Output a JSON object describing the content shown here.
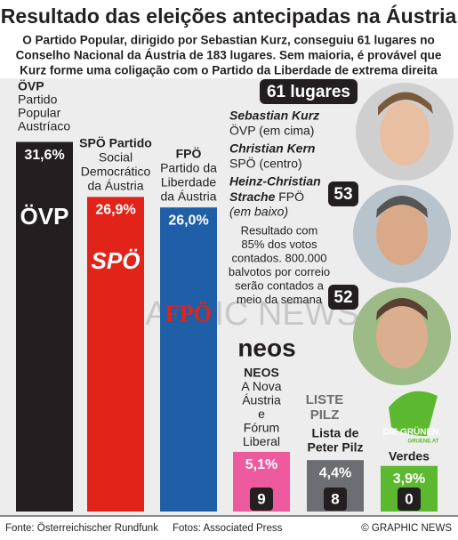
{
  "chart_data": {
    "type": "bar",
    "title": "Resultado das eleições antecipadas na Áustria",
    "subtitle": [
      "O Partido Popular, dirigido por Sebastian Kurz, conseguiu 61 lugares no",
      "Conselho Nacional da Áustria de 183 lugares. Sem maioria, é provável que",
      "Kurz forme uma coligação com o Partido da Liberdade de extrema direita"
    ],
    "categories": [
      "ÖVP",
      "SPÖ",
      "FPÖ",
      "NEOS",
      "Lista de Peter Pilz",
      "Verdes"
    ],
    "labels": [
      [
        "ÖVP",
        "Partido",
        "Popular",
        "Austríaco"
      ],
      [
        "SPÖ Partido",
        "Social",
        "Democrático",
        "da Áustria"
      ],
      [
        "FPÖ",
        "Partido da",
        "Liberdade",
        "da Áustria"
      ],
      [
        "NEOS",
        "A Nova",
        "Áustria",
        "e",
        "Fórum",
        "Liberal"
      ],
      [
        "Lista de",
        "Peter Pilz"
      ],
      [
        "Verdes"
      ]
    ],
    "logos": [
      [
        "ÖVP"
      ],
      [
        "SPÖ"
      ],
      [
        "FPÖ"
      ],
      [
        "neos"
      ],
      [
        "LISTE",
        "PILZ"
      ],
      [
        "DIE GRÜNEN",
        "GRUENE.AT"
      ]
    ],
    "values": [
      31.6,
      26.9,
      26.0,
      5.1,
      4.4,
      3.9
    ],
    "value_labels": [
      "31,6%",
      "26,9%",
      "26,0%",
      "5,1%",
      "4,4%",
      "3,9%"
    ],
    "colors": [
      "#231f20",
      "#e2231a",
      "#1f5fa8",
      "#ee5a9e",
      "#6d6e71",
      "#5cb82e"
    ],
    "seats": [
      61,
      53,
      52,
      9,
      8,
      0
    ],
    "seats_unit": "lugares",
    "ylim": [
      0,
      34
    ],
    "people": [
      {
        "name": [
          "Sebastian Kurz"
        ],
        "role": "ÖVP (em cima)"
      },
      {
        "name": [
          "Christian Kern"
        ],
        "role": "SPÖ (centro)"
      },
      {
        "name": [
          "Heinz-Christian",
          "Strache"
        ],
        "party": "FPÖ",
        "role": "(em baixo)"
      }
    ],
    "note": [
      "Resultado com",
      "85% dos votos",
      "contados. 800.000",
      "balvotos por correio",
      "serão contados a",
      "meio da semana"
    ],
    "watermark": "GRAPHIC NEWS",
    "footer": {
      "source": "Fonte: Österreichischer Rundfunk",
      "photos": "Fotos: Associated Press",
      "credit": "© GRAPHIC NEWS"
    }
  }
}
